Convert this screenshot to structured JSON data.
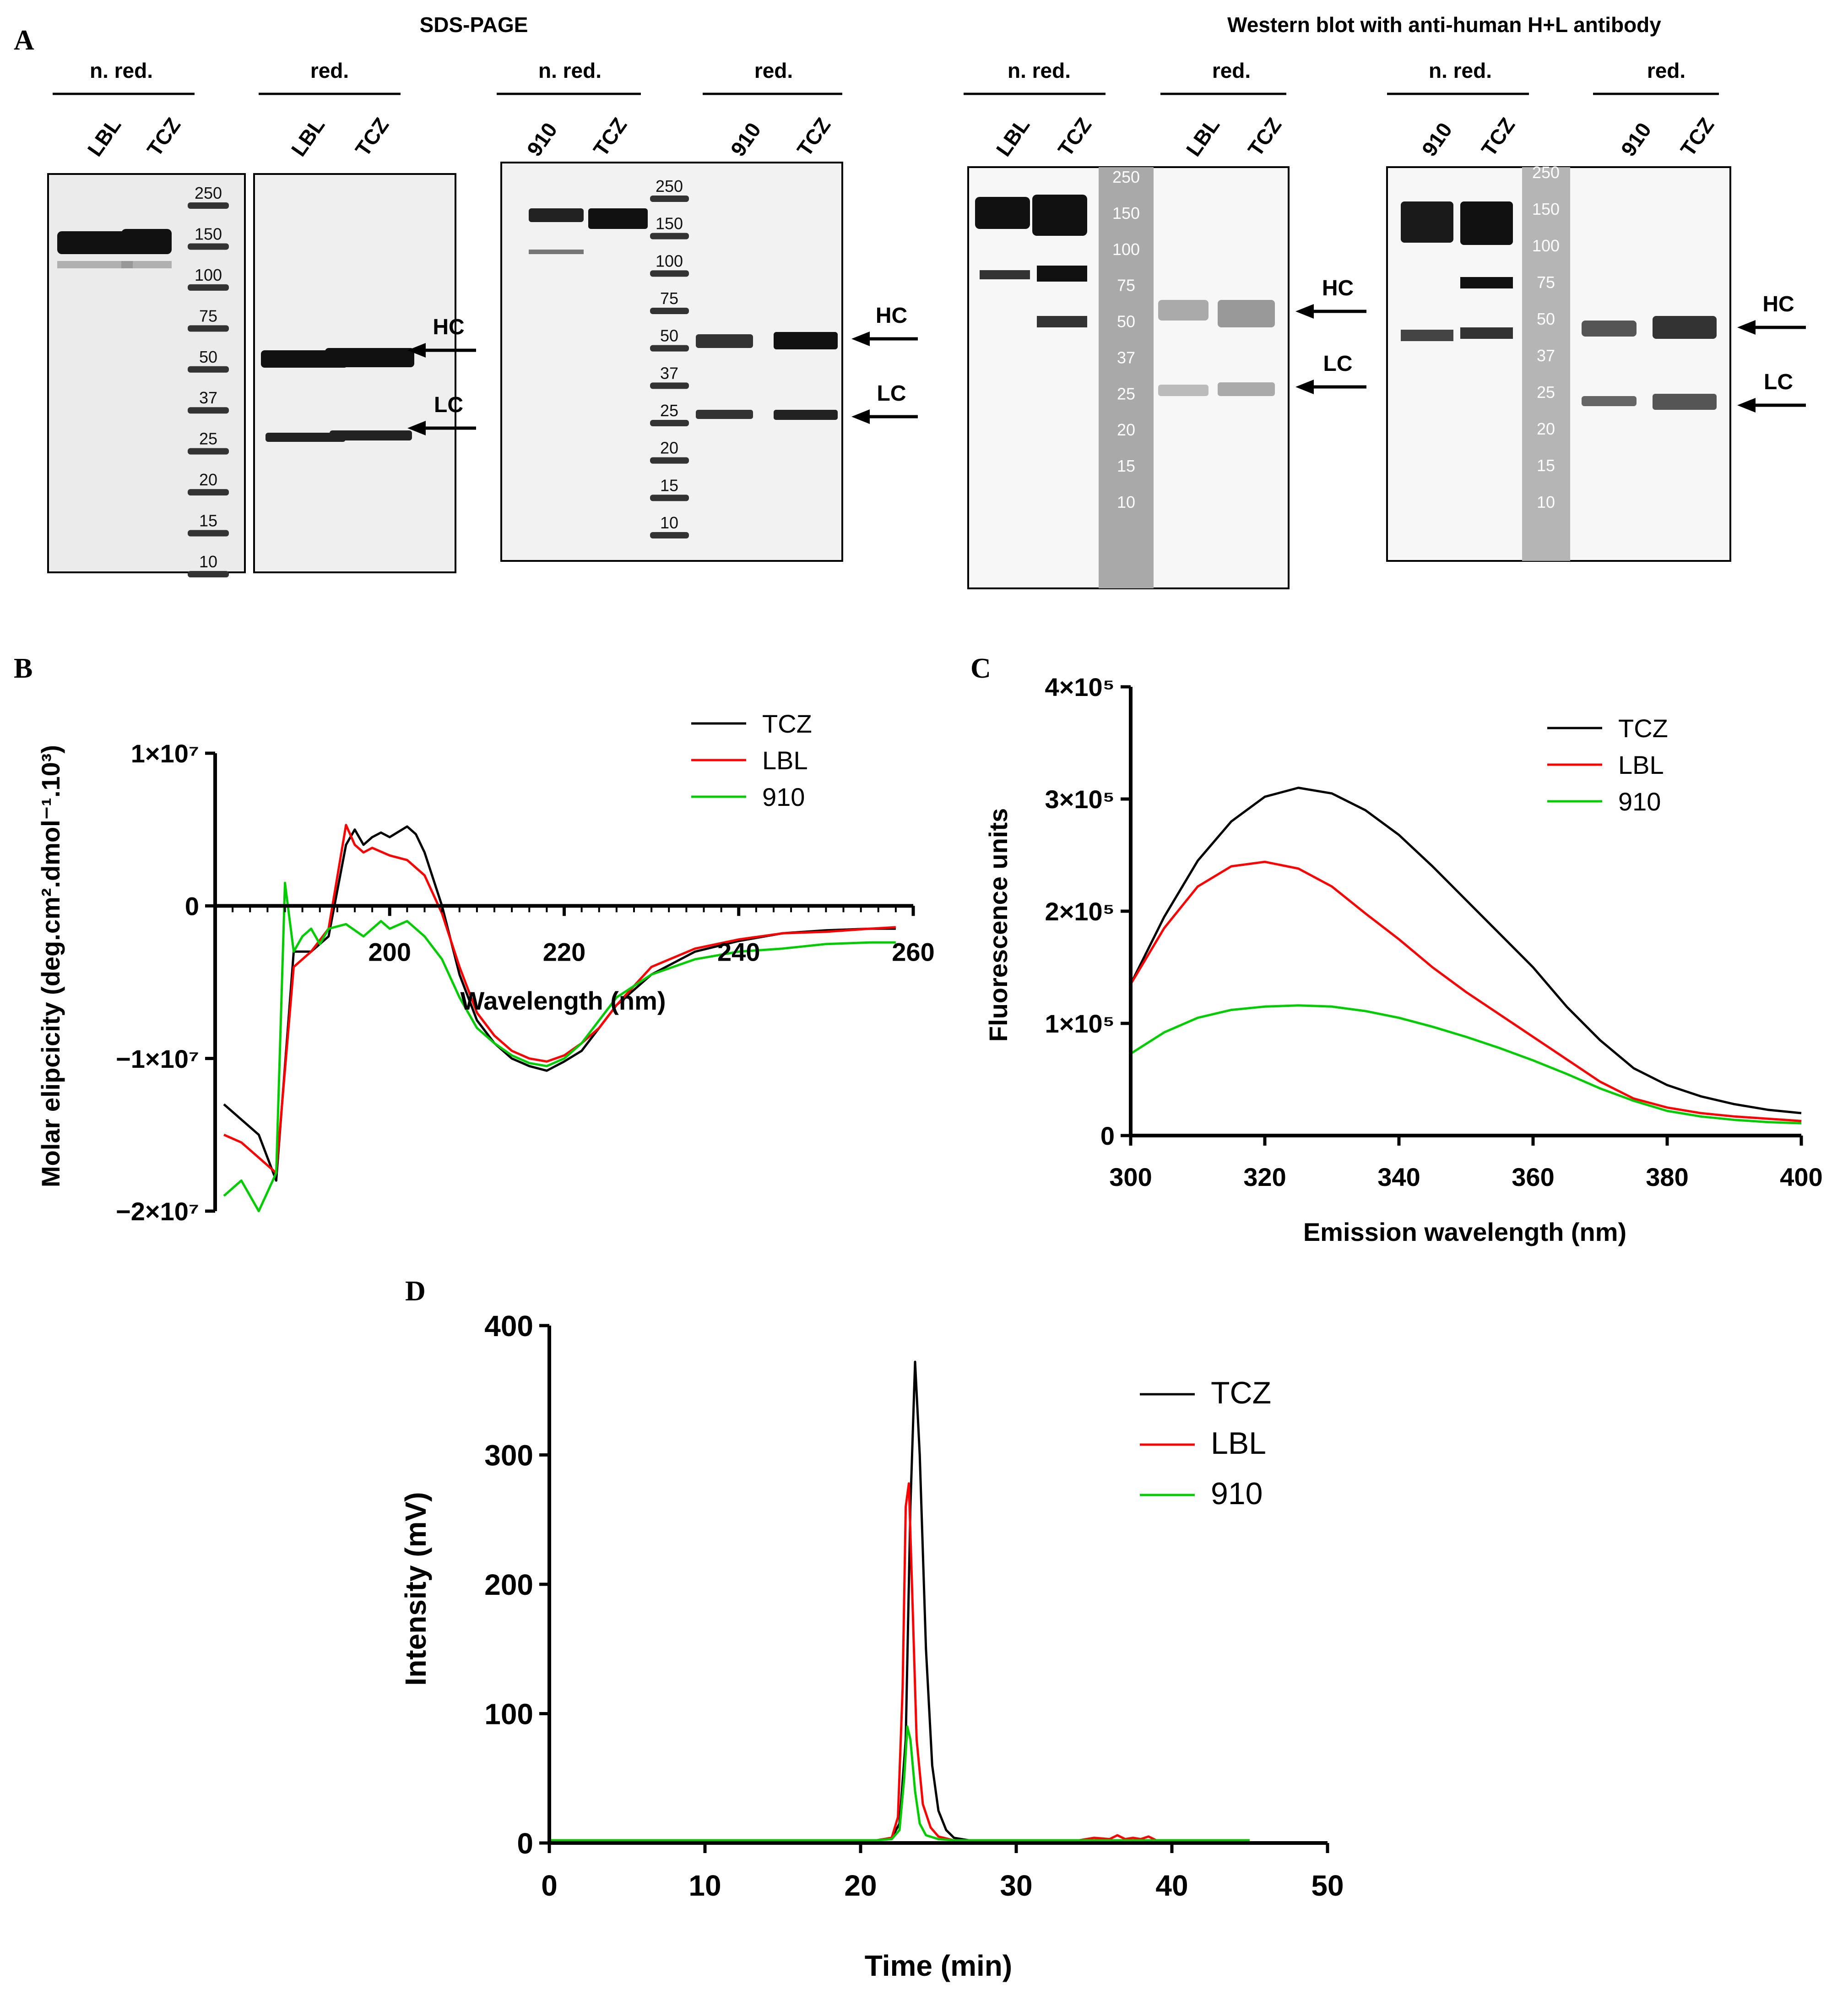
{
  "panel_letters": {
    "a": "A",
    "b": "B",
    "c": "C",
    "d": "D"
  },
  "gels": {
    "sds_title": "SDS-PAGE",
    "western_title": "Western blot with anti-human H+L antibody",
    "groups": [
      {
        "label": "n. red.",
        "lanes": [
          "LBL",
          "TCZ"
        ]
      },
      {
        "label": "red.",
        "lanes": [
          "LBL",
          "TCZ"
        ]
      },
      {
        "label": "n. red.",
        "lanes": [
          "910",
          "TCZ"
        ]
      },
      {
        "label": "red.",
        "lanes": [
          "910",
          "TCZ"
        ]
      },
      {
        "label": "n. red.",
        "lanes": [
          "LBL",
          "TCZ"
        ]
      },
      {
        "label": "red.",
        "lanes": [
          "LBL",
          "TCZ"
        ]
      },
      {
        "label": "n. red.",
        "lanes": [
          "910",
          "TCZ"
        ]
      },
      {
        "label": "red.",
        "lanes": [
          "910",
          "TCZ"
        ]
      }
    ],
    "ladder": [
      "250",
      "150",
      "100",
      "75",
      "50",
      "37",
      "25",
      "20",
      "15",
      "10"
    ],
    "arrows": {
      "hc": "HC",
      "lc": "LC"
    }
  },
  "chart_data": [
    {
      "id": "B",
      "type": "line",
      "title": "",
      "xlabel": "Wavelength (nm)",
      "ylabel": "Molar elipcicity (deg.cm².dmol⁻¹.10³)",
      "xlim": [
        180,
        260
      ],
      "ylim": [
        -20000000,
        10000000
      ],
      "x_ticks": [
        "200",
        "220",
        "240",
        "260"
      ],
      "y_ticks": [
        "1×10⁷",
        "0",
        "−1×10⁷",
        "−2×10⁷"
      ],
      "series": [
        {
          "name": "TCZ",
          "color": "#000000",
          "x": [
            181,
            183,
            185,
            187,
            189,
            191,
            193,
            195,
            196,
            197,
            198,
            199,
            200,
            202,
            203,
            204,
            206,
            208,
            210,
            212,
            214,
            216,
            218,
            220,
            222,
            224,
            226,
            230,
            235,
            240,
            245,
            250,
            255,
            258
          ],
          "y": [
            -13000000,
            -14000000,
            -15000000,
            -18000000,
            -3000000,
            -3000000,
            -2000000,
            4000000,
            5000000,
            4000000,
            4500000,
            4800000,
            4500000,
            5200000,
            4700000,
            3500000,
            0,
            -4500000,
            -7500000,
            -9000000,
            -10000000,
            -10500000,
            -10800000,
            -10200000,
            -9500000,
            -8000000,
            -6500000,
            -4500000,
            -3000000,
            -2300000,
            -1800000,
            -1600000,
            -1500000,
            -1500000
          ]
        },
        {
          "name": "LBL",
          "color": "#ff0000",
          "x": [
            181,
            183,
            185,
            187,
            189,
            191,
            193,
            195,
            196,
            197,
            198,
            200,
            202,
            204,
            206,
            208,
            210,
            212,
            214,
            216,
            218,
            220,
            222,
            224,
            226,
            230,
            235,
            240,
            245,
            250,
            255,
            258
          ],
          "y": [
            -15000000,
            -15500000,
            -16500000,
            -17500000,
            -4000000,
            -3000000,
            -1500000,
            5300000,
            4000000,
            3500000,
            3800000,
            3300000,
            3000000,
            2000000,
            -500000,
            -4000000,
            -7000000,
            -8500000,
            -9500000,
            -10000000,
            -10200000,
            -9800000,
            -9000000,
            -8000000,
            -6500000,
            -4000000,
            -2800000,
            -2200000,
            -1800000,
            -1700000,
            -1500000,
            -1400000
          ]
        },
        {
          "name": "910",
          "color": "#00cc00",
          "x": [
            181,
            183,
            185,
            187,
            188,
            189,
            190,
            191,
            192,
            193,
            195,
            197,
            199,
            200,
            202,
            204,
            206,
            208,
            210,
            212,
            214,
            216,
            218,
            220,
            222,
            224,
            226,
            230,
            235,
            240,
            245,
            250,
            255,
            258
          ],
          "y": [
            -19000000,
            -18000000,
            -20000000,
            -17500000,
            1500000,
            -3000000,
            -2000000,
            -1500000,
            -2500000,
            -1500000,
            -1200000,
            -2000000,
            -1000000,
            -1500000,
            -1000000,
            -2000000,
            -3500000,
            -6000000,
            -8000000,
            -9000000,
            -9800000,
            -10300000,
            -10500000,
            -10000000,
            -9000000,
            -7500000,
            -6000000,
            -4500000,
            -3500000,
            -3000000,
            -2800000,
            -2500000,
            -2400000,
            -2400000
          ]
        }
      ]
    },
    {
      "id": "C",
      "type": "line",
      "title": "",
      "xlabel": "Emission wavelength (nm)",
      "ylabel": "Fluorescence units",
      "xlim": [
        300,
        400
      ],
      "ylim": [
        0,
        400000
      ],
      "x_ticks": [
        "300",
        "320",
        "340",
        "360",
        "380",
        "400"
      ],
      "y_ticks": [
        "0",
        "1×10⁵",
        "2×10⁵",
        "3×10⁵",
        "4×10⁵"
      ],
      "series": [
        {
          "name": "TCZ",
          "color": "#000000",
          "x": [
            300,
            305,
            310,
            315,
            320,
            325,
            330,
            335,
            340,
            345,
            350,
            355,
            360,
            365,
            370,
            375,
            380,
            385,
            390,
            395,
            400
          ],
          "y": [
            135000,
            195000,
            245000,
            280000,
            302000,
            310000,
            305000,
            290000,
            268000,
            240000,
            210000,
            180000,
            150000,
            115000,
            85000,
            60000,
            45000,
            35000,
            28000,
            23000,
            20000
          ]
        },
        {
          "name": "LBL",
          "color": "#ff0000",
          "x": [
            300,
            305,
            310,
            315,
            320,
            325,
            330,
            335,
            340,
            345,
            350,
            355,
            360,
            365,
            370,
            375,
            380,
            385,
            390,
            395,
            400
          ],
          "y": [
            135000,
            185000,
            222000,
            240000,
            244000,
            238000,
            222000,
            198000,
            175000,
            150000,
            128000,
            108000,
            88000,
            68000,
            48000,
            33000,
            25000,
            20000,
            17000,
            15000,
            13000
          ]
        },
        {
          "name": "910",
          "color": "#00cc00",
          "x": [
            300,
            305,
            310,
            315,
            320,
            325,
            330,
            335,
            340,
            345,
            350,
            355,
            360,
            365,
            370,
            375,
            380,
            385,
            390,
            395,
            400
          ],
          "y": [
            73000,
            92000,
            105000,
            112000,
            115000,
            116000,
            115000,
            111000,
            105000,
            97000,
            88000,
            78000,
            67000,
            55000,
            42000,
            31000,
            22000,
            17000,
            14000,
            12000,
            11000
          ]
        }
      ]
    },
    {
      "id": "D",
      "type": "line",
      "title": "",
      "xlabel": "Time (min)",
      "ylabel": "Intensity (mV)",
      "xlim": [
        0,
        50
      ],
      "ylim": [
        0,
        400
      ],
      "x_ticks": [
        "0",
        "10",
        "20",
        "30",
        "40",
        "50"
      ],
      "y_ticks": [
        "0",
        "100",
        "200",
        "300",
        "400"
      ],
      "series": [
        {
          "name": "TCZ",
          "color": "#000000",
          "x": [
            0,
            21,
            22,
            22.5,
            22.9,
            23.2,
            23.5,
            23.8,
            24.2,
            24.6,
            25,
            25.5,
            26,
            27,
            45
          ],
          "y": [
            2,
            2,
            4,
            15,
            80,
            260,
            372,
            300,
            150,
            60,
            25,
            10,
            4,
            2,
            2
          ]
        },
        {
          "name": "LBL",
          "color": "#ff0000",
          "x": [
            0,
            21,
            22,
            22.4,
            22.7,
            22.9,
            23.1,
            23.3,
            23.6,
            24,
            24.5,
            25,
            26,
            30,
            34,
            35,
            36,
            36.5,
            37,
            37.5,
            38,
            38.5,
            39,
            45
          ],
          "y": [
            2,
            2,
            4,
            20,
            120,
            260,
            278,
            200,
            80,
            30,
            12,
            5,
            2,
            2,
            2,
            4,
            3,
            6,
            3,
            4,
            3,
            5,
            2,
            2
          ]
        },
        {
          "name": "910",
          "color": "#00cc00",
          "x": [
            0,
            21,
            22,
            22.5,
            22.8,
            23,
            23.2,
            23.5,
            23.8,
            24.2,
            25,
            26,
            45
          ],
          "y": [
            2,
            2,
            3,
            10,
            50,
            90,
            80,
            40,
            15,
            6,
            3,
            2,
            2
          ]
        }
      ]
    }
  ],
  "legends": {
    "b": [
      "TCZ",
      "LBL",
      "910"
    ],
    "c": [
      "TCZ",
      "LBL",
      "910"
    ],
    "d": [
      "TCZ",
      "LBL",
      "910"
    ]
  }
}
